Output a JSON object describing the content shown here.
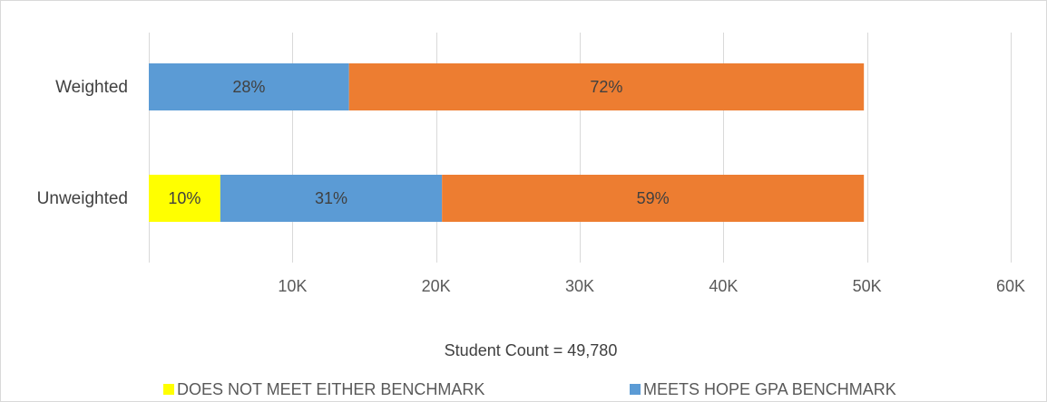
{
  "chart_data": {
    "type": "bar",
    "orientation": "horizontal",
    "stacked": true,
    "categories": [
      "Weighted",
      "Unweighted"
    ],
    "series": [
      {
        "name": "DOES NOT MEET EITHER BENCHMARK",
        "color": "#FFFF00",
        "values": [
          0,
          4978
        ],
        "labels": [
          "",
          "10%"
        ]
      },
      {
        "name": "MEETS HOPE GPA BENCHMARK",
        "color": "#5B9BD5",
        "values": [
          13938,
          15432
        ],
        "labels": [
          "28%",
          "31%"
        ]
      },
      {
        "name": "",
        "color": "#ED7D31",
        "values": [
          35842,
          29370
        ],
        "labels": [
          "72%",
          "59%"
        ]
      }
    ],
    "xaxis": {
      "ticks": [
        10000,
        20000,
        30000,
        40000,
        50000,
        60000
      ],
      "tick_labels": [
        "10K",
        "20K",
        "30K",
        "40K",
        "50K",
        "60K"
      ],
      "range": [
        0,
        60000
      ]
    },
    "grid": true,
    "xlabel": "Student Count = 49,780",
    "legend_position": "bottom"
  }
}
